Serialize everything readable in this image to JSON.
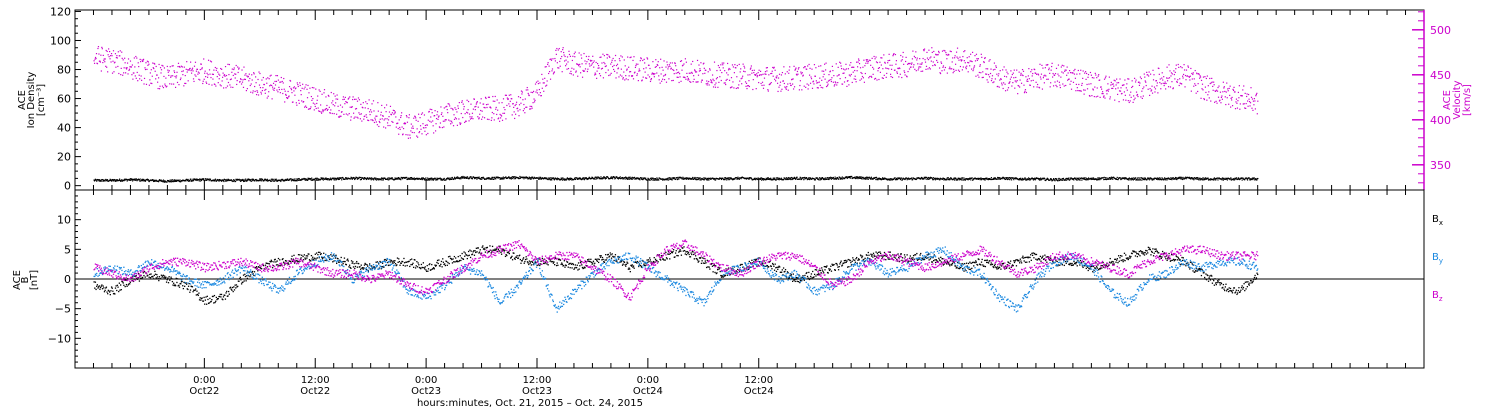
{
  "colors": {
    "density": "#000000",
    "velocity": "#cc00cc",
    "bx": "#000000",
    "by": "#1a88e0",
    "bz": "#cc00cc",
    "axis": "#000000"
  },
  "chart_data": [
    {
      "type": "scatter",
      "panel": "top",
      "ylabel_left": [
        "ACE",
        "Ion Density",
        "[cm⁻³]"
      ],
      "ylabel_right": [
        "ACE",
        "Velocity",
        "[km/s]"
      ],
      "left_ylim": [
        -3,
        121
      ],
      "left_ticks": [
        0,
        20,
        40,
        60,
        80,
        100,
        120
      ],
      "left_tick_labels": [
        "0",
        "20",
        "40",
        "60",
        "80",
        "100",
        "120"
      ],
      "right_ylim": [
        322,
        522
      ],
      "right_ticks": [
        350,
        400,
        450,
        500
      ],
      "right_tick_labels": [
        "350",
        "400",
        "450",
        "500"
      ],
      "series": [
        {
          "axis": "left",
          "color_key": "density",
          "x": [
            0,
            2,
            4,
            6,
            8,
            10,
            12,
            14,
            16,
            18,
            20,
            22,
            24,
            26,
            28,
            30,
            32,
            34,
            36,
            38,
            40,
            42,
            44,
            46,
            48,
            50,
            52,
            54,
            56,
            58,
            60,
            62,
            64,
            66,
            68,
            70,
            72,
            74,
            76,
            78,
            80,
            82,
            84,
            86,
            88,
            90,
            92,
            94,
            96,
            98,
            100,
            102,
            104,
            106,
            108,
            110,
            112,
            114,
            116,
            118,
            120,
            122,
            124,
            126
          ],
          "y": [
            4,
            4,
            4.5,
            4,
            3.5,
            4,
            4.5,
            4,
            4,
            4.5,
            4,
            4.5,
            5,
            5,
            5.5,
            5,
            5,
            5.5,
            5,
            5,
            6,
            5.5,
            5.5,
            6,
            5.5,
            5,
            5,
            5.5,
            6,
            5.5,
            5,
            5,
            5.5,
            5,
            5,
            5.5,
            5,
            5,
            5.5,
            5,
            5.5,
            6,
            5.5,
            5,
            5,
            5.5,
            5,
            5,
            5,
            5.5,
            5,
            5,
            4.5,
            5,
            5,
            5.5,
            5,
            5,
            5,
            5.5,
            5,
            5,
            5,
            5
          ]
        },
        {
          "axis": "right",
          "color_key": "velocity",
          "x": [
            0,
            2,
            4,
            6,
            8,
            10,
            12,
            14,
            16,
            18,
            20,
            22,
            24,
            26,
            28,
            30,
            32,
            34,
            36,
            38,
            40,
            42,
            44,
            46,
            48,
            50,
            52,
            54,
            56,
            58,
            60,
            62,
            64,
            66,
            68,
            70,
            72,
            74,
            76,
            78,
            80,
            82,
            84,
            86,
            88,
            90,
            92,
            94,
            96,
            98,
            100,
            102,
            104,
            106,
            108,
            110,
            112,
            114,
            116,
            118,
            120,
            122,
            124,
            126
          ],
          "y": [
            470,
            466,
            460,
            452,
            446,
            452,
            455,
            450,
            446,
            440,
            436,
            430,
            424,
            416,
            413,
            410,
            403,
            392,
            397,
            405,
            409,
            412,
            413,
            417,
            430,
            470,
            462,
            460,
            460,
            458,
            456,
            455,
            456,
            452,
            450,
            449,
            447,
            446,
            447,
            449,
            450,
            452,
            458,
            460,
            462,
            470,
            465,
            468,
            460,
            448,
            442,
            448,
            450,
            447,
            440,
            436,
            432,
            440,
            448,
            450,
            437,
            430,
            426,
            420
          ]
        }
      ]
    },
    {
      "type": "scatter",
      "panel": "bottom",
      "ylabel_left": [
        "ACE",
        "B",
        "[nT]"
      ],
      "ylim": [
        -15,
        15
      ],
      "ticks": [
        -10,
        -5,
        0,
        5,
        10
      ],
      "tick_labels": [
        "−10",
        "−5",
        "0",
        "5",
        "10"
      ],
      "legend_placement": "right",
      "series": [
        {
          "name": "B",
          "sub": "x",
          "color_key": "bx",
          "x": [
            0,
            2,
            4,
            6,
            8,
            10,
            12,
            14,
            16,
            18,
            20,
            22,
            24,
            26,
            28,
            30,
            32,
            34,
            36,
            38,
            40,
            42,
            44,
            46,
            48,
            50,
            52,
            54,
            56,
            58,
            60,
            62,
            64,
            66,
            68,
            70,
            72,
            74,
            76,
            78,
            80,
            82,
            84,
            86,
            88,
            90,
            92,
            94,
            96,
            98,
            100,
            102,
            104,
            106,
            108,
            110,
            112,
            114,
            116,
            118,
            120,
            122,
            124,
            126
          ],
          "y": [
            -1,
            -2,
            0,
            1,
            0,
            -1,
            -3.5,
            -3,
            0,
            2,
            3,
            3.5,
            4,
            3.5,
            2.5,
            2,
            3,
            3,
            2,
            3,
            4,
            5,
            5,
            3.5,
            3,
            3,
            2,
            3,
            4,
            2,
            3,
            4,
            5,
            3,
            1,
            2,
            3,
            2,
            0,
            1,
            2,
            3,
            4,
            4,
            3.5,
            4,
            3,
            2,
            3,
            2,
            3,
            4,
            3,
            3,
            2,
            3,
            4,
            5,
            4,
            3,
            1,
            -1,
            -2,
            1
          ]
        },
        {
          "name": "B",
          "sub": "y",
          "color_key": "by",
          "x": [
            0,
            2,
            4,
            6,
            8,
            10,
            12,
            14,
            16,
            18,
            20,
            22,
            24,
            26,
            28,
            30,
            32,
            34,
            36,
            38,
            40,
            42,
            44,
            46,
            48,
            50,
            52,
            54,
            56,
            58,
            60,
            62,
            64,
            66,
            68,
            70,
            72,
            74,
            76,
            78,
            80,
            82,
            84,
            86,
            88,
            90,
            92,
            94,
            96,
            98,
            100,
            102,
            104,
            106,
            108,
            110,
            112,
            114,
            116,
            118,
            120,
            122,
            124,
            126
          ],
          "y": [
            1,
            2,
            1,
            3,
            2,
            0,
            -1,
            0,
            2,
            0,
            -2,
            1,
            3,
            4,
            0,
            2,
            3,
            -2,
            -3,
            -1,
            2,
            1,
            -4,
            -1,
            3,
            -5,
            -2,
            1,
            3,
            4,
            2,
            0,
            -2,
            -4,
            1,
            2,
            3,
            0,
            1,
            -2,
            -1,
            2,
            3,
            1,
            2,
            4,
            5,
            2,
            1,
            -3,
            -5,
            0,
            3,
            4,
            2,
            -2,
            -4,
            0,
            1,
            3,
            2,
            3,
            3,
            2
          ]
        },
        {
          "name": "B",
          "sub": "z",
          "color_key": "bz",
          "x": [
            0,
            2,
            4,
            6,
            8,
            10,
            12,
            14,
            16,
            18,
            20,
            22,
            24,
            26,
            28,
            30,
            32,
            34,
            36,
            38,
            40,
            42,
            44,
            46,
            48,
            50,
            52,
            54,
            56,
            58,
            60,
            62,
            64,
            66,
            68,
            70,
            72,
            74,
            76,
            78,
            80,
            82,
            84,
            86,
            88,
            90,
            92,
            94,
            96,
            98,
            100,
            102,
            104,
            106,
            108,
            110,
            112,
            114,
            116,
            118,
            120,
            122,
            124,
            126
          ],
          "y": [
            2,
            1,
            0,
            2,
            3,
            3,
            2,
            2.5,
            3,
            2,
            2,
            3,
            2,
            1,
            1,
            0,
            1,
            -1,
            -2,
            0,
            2,
            4,
            5,
            6,
            3,
            4,
            4,
            2,
            0,
            -3,
            2,
            5,
            6,
            4,
            2,
            1,
            3,
            4,
            4,
            2,
            -1,
            0,
            3,
            4,
            3,
            2,
            3,
            4,
            5,
            3,
            1,
            2,
            4,
            4,
            3,
            2,
            1,
            3,
            4,
            5,
            5,
            4,
            4,
            4
          ]
        }
      ]
    }
  ],
  "x_axis": {
    "hours_range": [
      -14,
      132
    ],
    "major_ticks": [
      {
        "h": 0,
        "time": "0:00",
        "date": "Oct22"
      },
      {
        "h": 12,
        "time": "12:00",
        "date": "Oct22"
      },
      {
        "h": 24,
        "time": "0:00",
        "date": "Oct23"
      },
      {
        "h": 36,
        "time": "12:00",
        "date": "Oct23"
      },
      {
        "h": 48,
        "time": "0:00",
        "date": "Oct24"
      },
      {
        "h": 60,
        "time": "12:00",
        "date": "Oct24"
      }
    ],
    "minor_step_hours": 2,
    "title": "hours:minutes, Oct. 21, 2015 – Oct. 24, 2015"
  }
}
